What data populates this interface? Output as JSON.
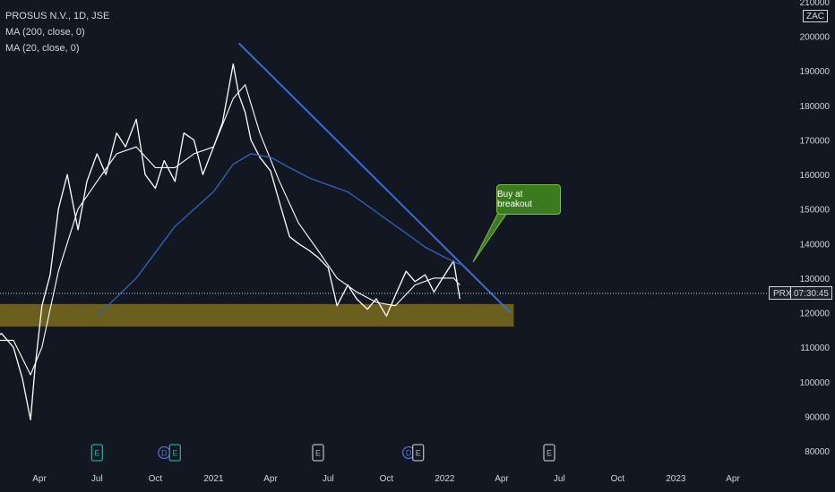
{
  "legend": {
    "symbol": "PROSUS N.V., 1D, JSE",
    "ma200": "MA (200, close, 0)",
    "ma20": "MA (20, close, 0)"
  },
  "currency": "ZAC",
  "current": {
    "symbol": "PRX",
    "time": "07:30:45",
    "price": 126000
  },
  "annotation": {
    "text": "Buy at breakout"
  },
  "colors": {
    "background": "#131722",
    "price": "#ffffff",
    "ma200": "#2f5fb5",
    "trendline": "#3a6bd9",
    "support_zone": "#6b5f1e",
    "callout": "#3b7a1e",
    "event_earnings": "#b2b5be",
    "event_dividend": "#5a6bd6",
    "event_e_teal": "#26a69a"
  },
  "chart_data": {
    "type": "line",
    "title": "PROSUS N.V., 1D, JSE",
    "xlabel": "",
    "ylabel": "",
    "ylim": [
      76000,
      210000
    ],
    "yticks": [
      80000,
      90000,
      100000,
      110000,
      120000,
      130000,
      140000,
      150000,
      160000,
      170000,
      180000,
      190000,
      200000,
      210000
    ],
    "yticks_labels": [
      "80000",
      "90000",
      "100000",
      "110000",
      "120000",
      "130000",
      "140000",
      "150000",
      "160000",
      "170000",
      "180000",
      "190000",
      "200000",
      "210000"
    ],
    "xticks": [
      "Apr",
      "Jul",
      "Oct",
      "2021",
      "Apr",
      "Jul",
      "Oct",
      "2022",
      "Apr",
      "Jul",
      "Oct",
      "2023",
      "Apr"
    ],
    "xticks_dates": [
      "2020-04-01",
      "2020-07-01",
      "2020-10-01",
      "2021-01-01",
      "2021-04-01",
      "2021-07-01",
      "2021-10-01",
      "2022-01-01",
      "2022-04-01",
      "2022-07-01",
      "2022-10-01",
      "2023-01-01",
      "2023-04-01"
    ],
    "series": [
      {
        "name": "PROSUS N.V., 1D, JSE",
        "x": [
          "2020-01-10",
          "2020-02-01",
          "2020-02-20",
          "2020-03-05",
          "2020-03-18",
          "2020-03-25",
          "2020-04-05",
          "2020-04-18",
          "2020-05-01",
          "2020-05-15",
          "2020-06-01",
          "2020-06-15",
          "2020-07-01",
          "2020-07-15",
          "2020-08-01",
          "2020-08-15",
          "2020-09-01",
          "2020-09-15",
          "2020-10-01",
          "2020-10-15",
          "2020-11-01",
          "2020-11-15",
          "2020-12-01",
          "2020-12-15",
          "2021-01-01",
          "2021-01-15",
          "2021-02-01",
          "2021-02-10",
          "2021-02-20",
          "2021-03-01",
          "2021-03-15",
          "2021-04-01",
          "2021-04-15",
          "2021-05-01",
          "2021-05-15",
          "2021-06-01",
          "2021-06-15",
          "2021-07-01",
          "2021-07-15",
          "2021-08-01",
          "2021-08-15",
          "2021-09-01",
          "2021-09-15",
          "2021-10-01",
          "2021-10-15",
          "2021-11-01",
          "2021-11-15",
          "2021-12-01",
          "2021-12-15",
          "2022-01-01",
          "2022-01-15",
          "2022-01-25"
        ],
        "values": [
          111000,
          114000,
          110000,
          101000,
          89000,
          104000,
          122000,
          131000,
          150000,
          160000,
          144000,
          158000,
          166000,
          160000,
          172000,
          168000,
          176000,
          160000,
          156000,
          164000,
          158000,
          172000,
          170000,
          160000,
          168000,
          175000,
          192000,
          183000,
          178000,
          170000,
          165000,
          161000,
          152000,
          142000,
          140000,
          138000,
          136000,
          133000,
          122000,
          128000,
          124000,
          121000,
          124000,
          119000,
          125000,
          132000,
          129000,
          131000,
          126000,
          131000,
          135000,
          124000
        ]
      },
      {
        "name": "MA (20, close, 0)",
        "x": [
          "2020-01-10",
          "2020-02-20",
          "2020-03-18",
          "2020-04-05",
          "2020-05-01",
          "2020-06-01",
          "2020-07-01",
          "2020-08-01",
          "2020-09-01",
          "2020-10-01",
          "2020-11-01",
          "2020-12-01",
          "2021-01-01",
          "2021-02-01",
          "2021-02-20",
          "2021-03-15",
          "2021-04-15",
          "2021-05-15",
          "2021-06-15",
          "2021-07-15",
          "2021-08-15",
          "2021-09-15",
          "2021-10-15",
          "2021-11-15",
          "2021-12-15",
          "2022-01-15",
          "2022-01-25"
        ],
        "values": [
          112000,
          112000,
          102000,
          110000,
          132000,
          150000,
          158000,
          166000,
          168000,
          162000,
          162000,
          166000,
          168000,
          182000,
          186000,
          172000,
          158000,
          146000,
          138000,
          130000,
          126000,
          123000,
          122000,
          128000,
          130000,
          130000,
          128000
        ]
      },
      {
        "name": "MA (200, close, 0)",
        "x": [
          "2020-07-01",
          "2020-09-01",
          "2020-11-01",
          "2021-01-01",
          "2021-02-01",
          "2021-03-01",
          "2021-04-01",
          "2021-05-01",
          "2021-06-01",
          "2021-07-01",
          "2021-08-01",
          "2021-09-01",
          "2021-10-01",
          "2021-11-01",
          "2021-12-01",
          "2022-01-01",
          "2022-01-25"
        ],
        "values": [
          119000,
          130000,
          145000,
          155000,
          163000,
          166000,
          165000,
          162000,
          159000,
          157000,
          155000,
          151000,
          147000,
          143000,
          139000,
          136000,
          134000
        ]
      }
    ],
    "trendline": {
      "from": [
        "2021-02-10",
        198000
      ],
      "to": [
        "2022-04-15",
        120000
      ]
    },
    "support_zone": {
      "from": "2020-01-01",
      "to": "2022-04-20",
      "low": 116000,
      "high": 122500
    },
    "events": [
      {
        "date": "2020-07-01",
        "label": "E",
        "kind": "e_teal"
      },
      {
        "date": "2020-10-15",
        "label": "D",
        "kind": "dividend"
      },
      {
        "date": "2020-11-01",
        "label": "E",
        "kind": "e_teal"
      },
      {
        "date": "2021-06-15",
        "label": "E",
        "kind": "earnings"
      },
      {
        "date": "2021-11-05",
        "label": "D",
        "kind": "dividend"
      },
      {
        "date": "2021-11-20",
        "label": "E",
        "kind": "earnings"
      },
      {
        "date": "2022-06-15",
        "label": "E",
        "kind": "earnings"
      }
    ],
    "grid": false,
    "legend": "top-left"
  }
}
